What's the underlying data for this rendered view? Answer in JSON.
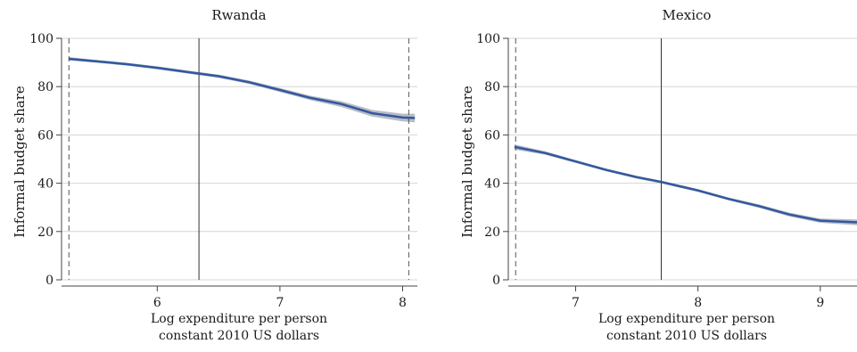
{
  "chart_data": [
    {
      "type": "line",
      "title": "Rwanda",
      "xlabel": [
        "Log expenditure per person",
        "constant 2010 US dollars"
      ],
      "ylabel": "Informal budget share",
      "xlim": [
        5.22,
        8.12
      ],
      "ylim": [
        0,
        100
      ],
      "xticks": [
        6,
        7,
        8
      ],
      "yticks": [
        0,
        20,
        40,
        60,
        80,
        100
      ],
      "grid": "horizontal",
      "reference_lines": {
        "dashed": [
          5.28,
          8.05
        ],
        "solid": [
          6.34
        ]
      },
      "band_color": "#b9bcc4",
      "line_color": "#3358a0",
      "series": [
        {
          "x": [
            5.28,
            5.5,
            5.75,
            6.0,
            6.25,
            6.5,
            6.75,
            7.0,
            7.25,
            7.5,
            7.75,
            8.0,
            8.1
          ],
          "values": [
            91.5,
            90.5,
            89.3,
            87.8,
            86.0,
            84.3,
            81.8,
            78.6,
            75.3,
            72.8,
            69.0,
            67.2,
            67.0
          ],
          "lower": [
            90.8,
            89.9,
            88.7,
            87.2,
            85.4,
            83.6,
            81.1,
            77.8,
            74.4,
            71.6,
            67.6,
            65.6,
            65.2
          ],
          "upper": [
            92.2,
            91.1,
            89.9,
            88.4,
            86.6,
            85.0,
            82.5,
            79.4,
            76.2,
            74.0,
            70.4,
            68.8,
            68.8
          ]
        }
      ]
    },
    {
      "type": "line",
      "title": "Mexico",
      "xlabel": [
        "Log expenditure per person",
        "constant 2010 US dollars"
      ],
      "ylabel": "Informal budget share",
      "xlim": [
        6.45,
        9.3
      ],
      "ylim": [
        0,
        100
      ],
      "xticks": [
        7,
        8,
        9
      ],
      "yticks": [
        0,
        20,
        40,
        60,
        80,
        100
      ],
      "grid": "horizontal",
      "reference_lines": {
        "dashed": [
          6.51
        ],
        "solid": [
          7.7
        ]
      },
      "band_color": "#b9bcc4",
      "line_color": "#3358a0",
      "series": [
        {
          "x": [
            6.5,
            6.75,
            7.0,
            7.25,
            7.5,
            7.7,
            8.0,
            8.25,
            8.5,
            8.75,
            9.0,
            9.3
          ],
          "values": [
            55.0,
            52.5,
            49.0,
            45.5,
            42.5,
            40.5,
            37.0,
            33.5,
            30.5,
            27.0,
            24.5,
            23.8
          ],
          "lower": [
            53.9,
            51.8,
            48.4,
            44.9,
            41.9,
            39.9,
            36.4,
            32.9,
            29.8,
            26.2,
            23.6,
            22.6
          ],
          "upper": [
            56.1,
            53.2,
            49.6,
            46.1,
            43.1,
            41.1,
            37.6,
            34.1,
            31.2,
            27.8,
            25.4,
            25.0
          ]
        }
      ]
    }
  ]
}
